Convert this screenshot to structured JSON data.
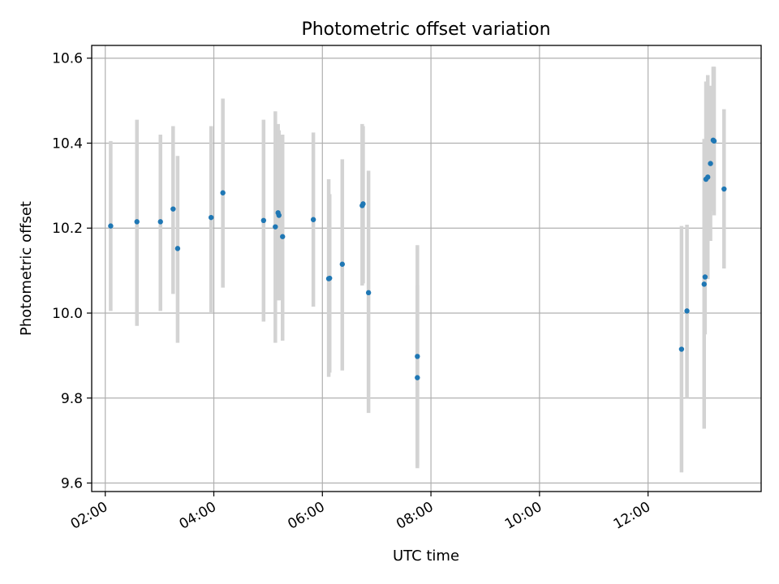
{
  "chart_data": {
    "type": "scatter",
    "title": "Photometric offset variation",
    "xlabel": "UTC time",
    "ylabel": "Photometric offset",
    "x_ticks": [
      "02:00",
      "04:00",
      "06:00",
      "08:00",
      "10:00",
      "12:00"
    ],
    "x_tick_values": [
      "02:00",
      "04:00",
      "06:00",
      "08:00",
      "10:00",
      "12:00"
    ],
    "xlim": [
      "01:45",
      "14:05"
    ],
    "y_ticks": [
      "9.6",
      "9.8",
      "10.0",
      "10.2",
      "10.4",
      "10.6"
    ],
    "y_tick_values": [
      9.6,
      9.8,
      10.0,
      10.2,
      10.4,
      10.6
    ],
    "ylim": [
      9.58,
      10.63
    ],
    "grid": true,
    "x_tick_rotation": "30 degrees",
    "colors": {
      "marker": "#1f77b4",
      "errorbar": "#d3d3d3",
      "grid": "#b0b0b0",
      "axes": "#000000"
    },
    "points": [
      {
        "x": "02:06",
        "y": 10.205,
        "ylo": 10.005,
        "yhi": 10.405
      },
      {
        "x": "02:35",
        "y": 10.215,
        "ylo": 9.97,
        "yhi": 10.455
      },
      {
        "x": "03:01",
        "y": 10.215,
        "ylo": 10.005,
        "yhi": 10.42
      },
      {
        "x": "03:15",
        "y": 10.245,
        "ylo": 10.045,
        "yhi": 10.44
      },
      {
        "x": "03:20",
        "y": 10.152,
        "ylo": 9.93,
        "yhi": 10.37
      },
      {
        "x": "03:57",
        "y": 10.225,
        "ylo": 10.0,
        "yhi": 10.44
      },
      {
        "x": "04:10",
        "y": 10.283,
        "ylo": 10.06,
        "yhi": 10.505
      },
      {
        "x": "04:55",
        "y": 10.218,
        "ylo": 9.98,
        "yhi": 10.455
      },
      {
        "x": "05:08",
        "y": 10.203,
        "ylo": 9.93,
        "yhi": 10.475
      },
      {
        "x": "05:11",
        "y": 10.236,
        "ylo": 10.03,
        "yhi": 10.445
      },
      {
        "x": "05:12",
        "y": 10.23,
        "ylo": 10.03,
        "yhi": 10.43
      },
      {
        "x": "05:16",
        "y": 10.18,
        "ylo": 9.935,
        "yhi": 10.42
      },
      {
        "x": "05:50",
        "y": 10.22,
        "ylo": 10.015,
        "yhi": 10.425
      },
      {
        "x": "06:07",
        "y": 10.081,
        "ylo": 9.85,
        "yhi": 10.315
      },
      {
        "x": "06:08",
        "y": 10.082,
        "ylo": 9.86,
        "yhi": 10.28
      },
      {
        "x": "06:22",
        "y": 10.115,
        "ylo": 9.865,
        "yhi": 10.362
      },
      {
        "x": "06:44",
        "y": 10.253,
        "ylo": 10.065,
        "yhi": 10.445
      },
      {
        "x": "06:45",
        "y": 10.257,
        "ylo": 10.07,
        "yhi": 10.44
      },
      {
        "x": "06:51",
        "y": 10.048,
        "ylo": 9.765,
        "yhi": 10.335
      },
      {
        "x": "07:45",
        "y": 9.898,
        "ylo": 9.635,
        "yhi": 10.16
      },
      {
        "x": "07:45",
        "y": 9.848,
        "ylo": 9.64,
        "yhi": 10.065
      },
      {
        "x": "12:37",
        "y": 9.915,
        "ylo": 9.625,
        "yhi": 10.205
      },
      {
        "x": "12:43",
        "y": 10.005,
        "ylo": 9.8,
        "yhi": 10.208
      },
      {
        "x": "13:02",
        "y": 10.068,
        "ylo": 9.728,
        "yhi": 10.41
      },
      {
        "x": "13:03",
        "y": 10.085,
        "ylo": 9.95,
        "yhi": 10.22
      },
      {
        "x": "13:04",
        "y": 10.315,
        "ylo": 10.09,
        "yhi": 10.545
      },
      {
        "x": "13:06",
        "y": 10.32,
        "ylo": 10.08,
        "yhi": 10.56
      },
      {
        "x": "13:09",
        "y": 10.352,
        "ylo": 10.17,
        "yhi": 10.535
      },
      {
        "x": "13:12",
        "y": 10.407,
        "ylo": 10.24,
        "yhi": 10.58
      },
      {
        "x": "13:13",
        "y": 10.405,
        "ylo": 10.23,
        "yhi": 10.58
      },
      {
        "x": "13:24",
        "y": 10.292,
        "ylo": 10.105,
        "yhi": 10.48
      }
    ]
  }
}
